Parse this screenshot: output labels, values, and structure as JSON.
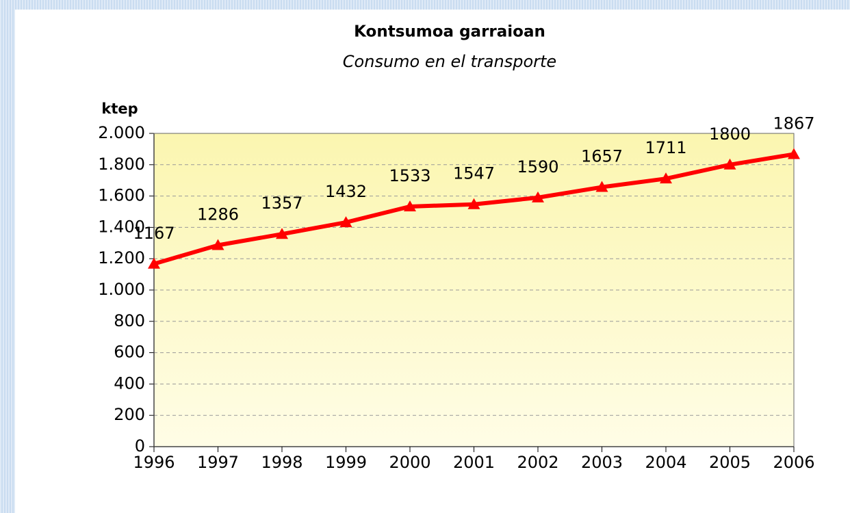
{
  "chart_data": {
    "type": "line",
    "title": "Kontsumoa garraioan",
    "subtitle": "Consumo en el transporte",
    "y_label": "ktep",
    "categories": [
      "1996",
      "1997",
      "1998",
      "1999",
      "2000",
      "2001",
      "2002",
      "2003",
      "2004",
      "2005",
      "2006"
    ],
    "series": [
      {
        "name": "Consumo en el transporte",
        "color": "#ff0000",
        "values": [
          1167,
          1286,
          1357,
          1432,
          1533,
          1547,
          1590,
          1657,
          1711,
          1800,
          1867
        ]
      }
    ],
    "ylim": [
      0,
      2000
    ],
    "yticks": [
      0,
      200,
      400,
      600,
      800,
      {
        "value": 1000,
        "label": "1.000"
      },
      {
        "value": 1200,
        "label": "1.200"
      },
      {
        "value": 1400,
        "label": "1.400"
      },
      {
        "value": 1600,
        "label": "1.600"
      },
      {
        "value": 1800,
        "label": "1.800"
      },
      {
        "value": 2000,
        "label": "2.000"
      }
    ],
    "grid": true
  }
}
